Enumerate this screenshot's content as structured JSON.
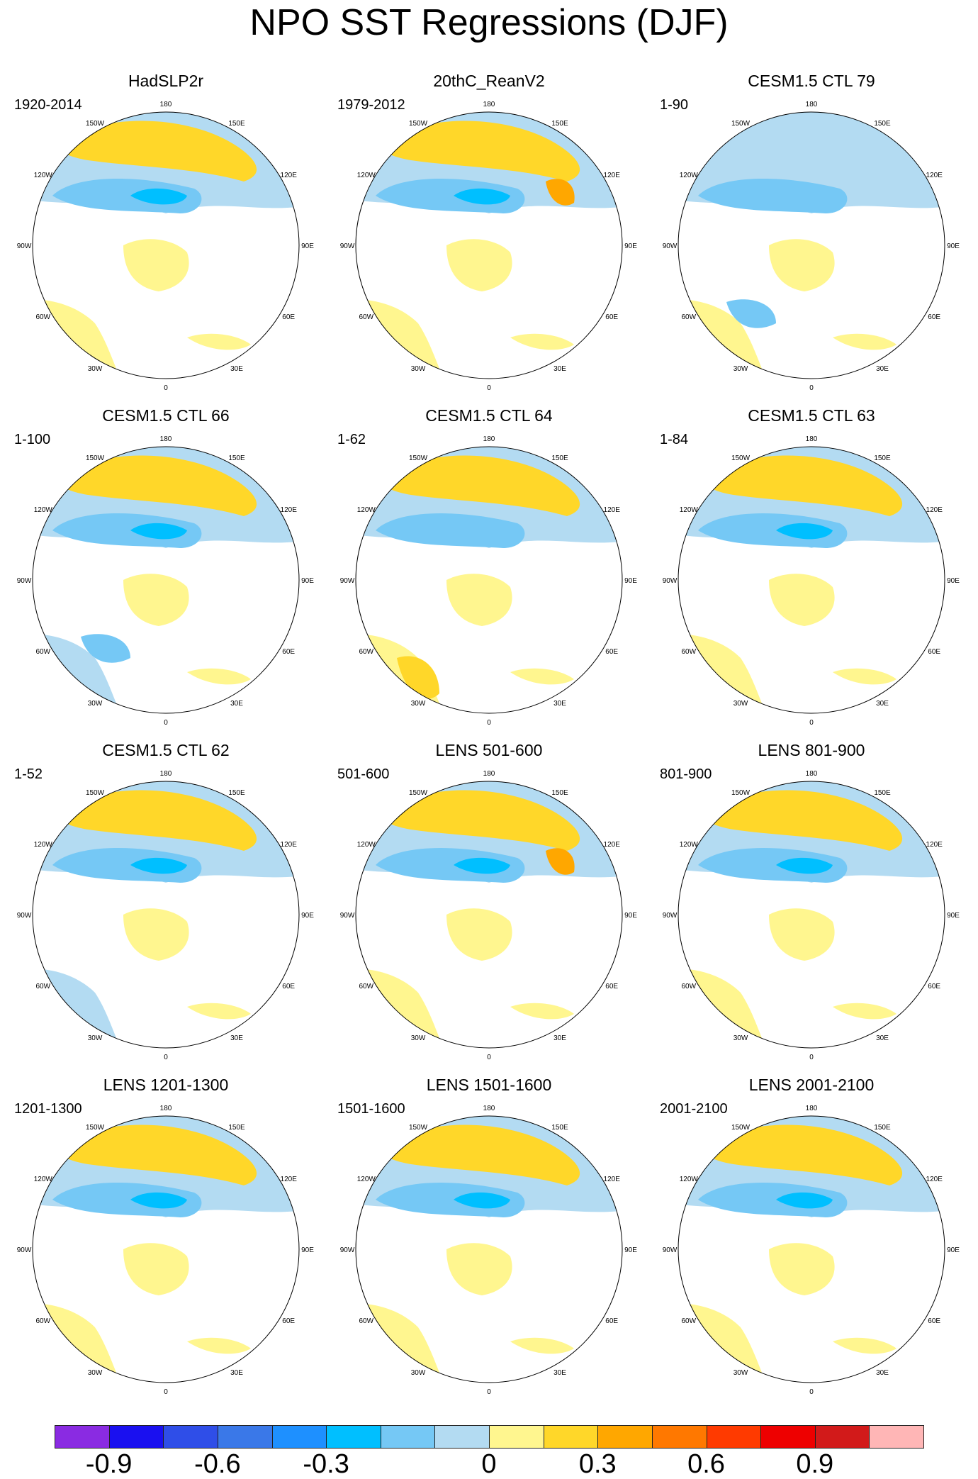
{
  "title": "NPO SST Regressions (DJF)",
  "longitude_labels": [
    "180",
    "150E",
    "120E",
    "90E",
    "60E",
    "30E",
    "0",
    "30W",
    "60W",
    "90W",
    "120W",
    "150W"
  ],
  "panels": [
    {
      "title": "HadSLP2r",
      "years": "1920-2014",
      "pattern": "a"
    },
    {
      "title": "20thC_ReanV2",
      "years": "1979-2012",
      "pattern": "b"
    },
    {
      "title": "CESM1.5 CTL 79",
      "years": "1-90",
      "pattern": "c"
    },
    {
      "title": "CESM1.5 CTL 66",
      "years": "1-100",
      "pattern": "d"
    },
    {
      "title": "CESM1.5 CTL 64",
      "years": "1-62",
      "pattern": "e"
    },
    {
      "title": "CESM1.5 CTL 63",
      "years": "1-84",
      "pattern": "a"
    },
    {
      "title": "CESM1.5 CTL 62",
      "years": "1-52",
      "pattern": "f"
    },
    {
      "title": "LENS 501-600",
      "years": "501-600",
      "pattern": "b"
    },
    {
      "title": "LENS 801-900",
      "years": "801-900",
      "pattern": "a"
    },
    {
      "title": "LENS 1201-1300",
      "years": "1201-1300",
      "pattern": "a"
    },
    {
      "title": "LENS 1501-1600",
      "years": "1501-1600",
      "pattern": "a"
    },
    {
      "title": "LENS 2001-2100",
      "years": "2001-2100",
      "pattern": "a"
    }
  ],
  "colorbar": {
    "colors": [
      "#8a2be2",
      "#1a10f0",
      "#2f4ee8",
      "#3a78e8",
      "#1e90ff",
      "#00bfff",
      "#75c8f5",
      "#b3dbf2",
      "#fff68f",
      "#ffd729",
      "#ffa700",
      "#ff7800",
      "#ff3a00",
      "#ee0000",
      "#d21a1a",
      "#ffb6b6"
    ],
    "tick_labels": [
      "-0.9",
      "-0.6",
      "-0.3",
      "0",
      "0.3",
      "0.6",
      "0.9"
    ],
    "tick_positions": [
      -0.9,
      -0.6,
      -0.3,
      0,
      0.3,
      0.6,
      0.9
    ],
    "levels": [
      -1.05,
      -0.9,
      -0.75,
      -0.6,
      -0.45,
      -0.3,
      -0.15,
      -0.075,
      0,
      0.15,
      0.3,
      0.45,
      0.6,
      0.75,
      0.9,
      1.05,
      1.2
    ]
  }
}
